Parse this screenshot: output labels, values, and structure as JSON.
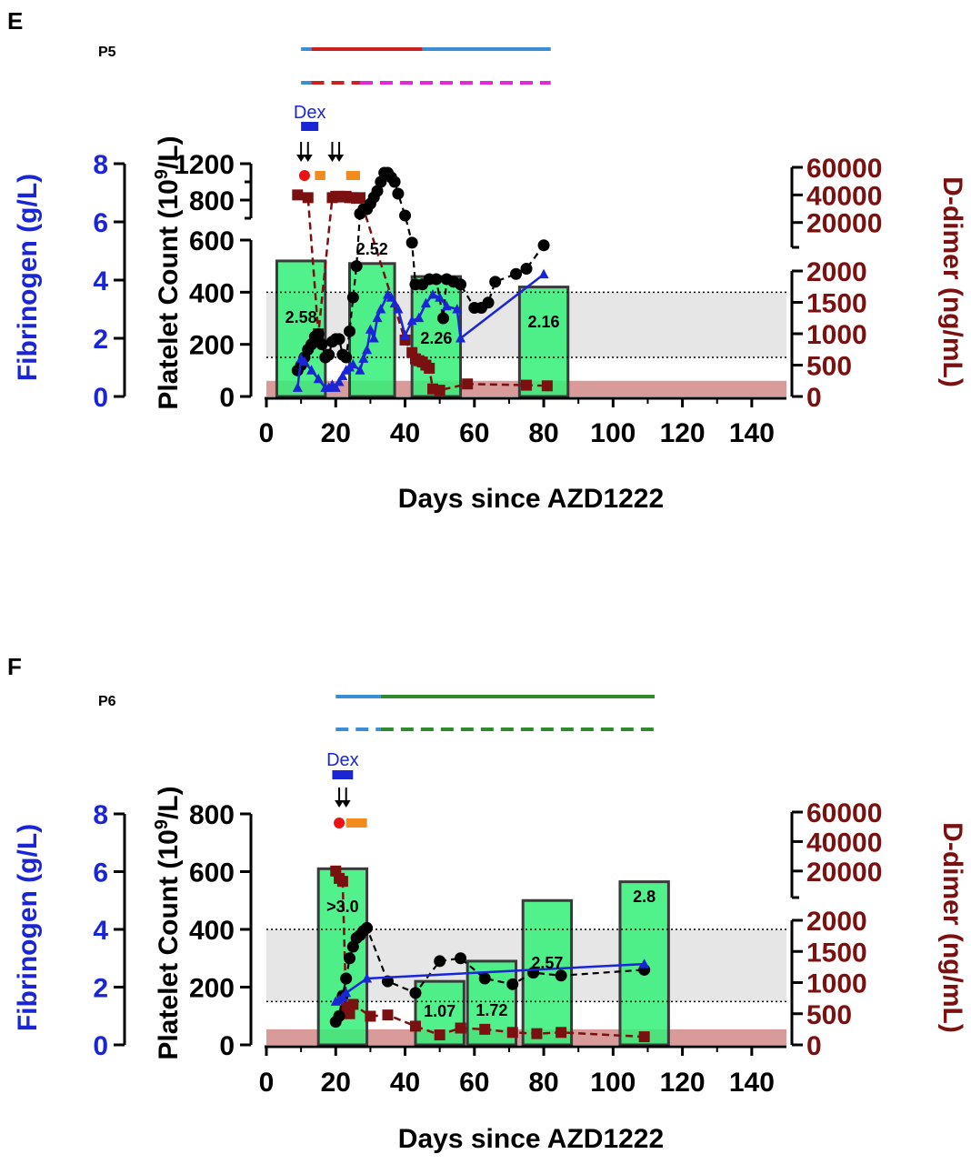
{
  "chart_data": [
    {
      "panel_letter": "E",
      "patient": "P5",
      "type": "line",
      "xlabel": "Days since AZD1222",
      "xlim": [
        0,
        150
      ],
      "x_ticks": [
        "0",
        "20",
        "40",
        "60",
        "80",
        "100",
        "120",
        "140"
      ],
      "left_axis": {
        "label": "Fibrinogen (g/L)",
        "ylim": [
          0,
          8
        ],
        "ticks": [
          "0",
          "2",
          "4",
          "6",
          "8"
        ]
      },
      "middle_axis": {
        "label_main": "Platelet Count (10",
        "label_sup": "9",
        "label_end": "/L)",
        "lower_ylim": [
          0,
          600
        ],
        "lower_ticks": [
          "0",
          "200",
          "400",
          "600"
        ],
        "upper_ylim": [
          600,
          1200
        ],
        "upper_ticks": [
          "800",
          "1200"
        ]
      },
      "right_axis": {
        "label": "D-dimer (ng/mL)",
        "lower_ylim": [
          0,
          2000
        ],
        "lower_ticks": [
          "0",
          "500",
          "1000",
          "1500",
          "2000"
        ],
        "upper_ylim": [
          2000,
          60000
        ],
        "upper_ticks": [
          "20000",
          "40000",
          "60000"
        ]
      },
      "reference_lines": {
        "platelet_low": 150,
        "platelet_high": 400,
        "ddimer_upper_normal": 250
      },
      "bars": [
        {
          "x_start": 3,
          "x_end": 17,
          "value": 2.58,
          "label": "2.58"
        },
        {
          "x_start": 24,
          "x_end": 37,
          "value": 2.52,
          "label": "2.52"
        },
        {
          "x_start": 42,
          "x_end": 56,
          "value": 2.26,
          "label": "2.26"
        },
        {
          "x_start": 73,
          "x_end": 87,
          "value": 2.16,
          "label": "2.16"
        }
      ],
      "bar_heights_platelet": [
        520,
        510,
        460,
        420
      ],
      "series": [
        {
          "name": "Platelet count",
          "color": "#000000",
          "x": [
            9,
            10,
            11,
            12,
            13,
            14,
            15,
            16,
            17,
            18,
            19,
            20,
            21,
            22,
            23,
            24,
            25,
            26,
            27,
            28,
            29,
            30,
            31,
            32,
            33,
            34,
            35,
            36,
            37,
            38,
            40,
            42,
            43,
            45,
            47,
            49,
            51,
            52,
            54,
            56,
            60,
            62,
            64,
            66,
            72,
            75,
            80
          ],
          "y": [
            100,
            120,
            150,
            180,
            200,
            230,
            240,
            200,
            150,
            160,
            210,
            220,
            220,
            160,
            150,
            250,
            380,
            500,
            650,
            700,
            700,
            760,
            830,
            900,
            1000,
            1100,
            1100,
            1050,
            1000,
            870,
            630,
            590,
            430,
            430,
            450,
            450,
            300,
            450,
            440,
            430,
            340,
            340,
            360,
            440,
            470,
            490,
            580
          ]
        },
        {
          "name": "Fibrinogen",
          "color": "#1a26d6",
          "x": [
            9,
            10,
            11,
            13,
            15,
            17,
            18,
            19,
            20,
            21,
            22,
            23,
            24,
            25,
            27,
            28,
            29,
            30,
            31,
            32,
            33,
            35,
            36,
            37,
            38,
            40,
            42,
            44,
            46,
            48,
            50,
            52,
            55,
            56,
            80
          ],
          "y": [
            0.3,
            1.3,
            1.2,
            0.9,
            0.6,
            0.3,
            0.3,
            0.4,
            0.3,
            0.5,
            0.7,
            0.9,
            1.0,
            1.1,
            0.9,
            1.3,
            1.6,
            2.3,
            2.0,
            2.7,
            3.0,
            3.5,
            3.4,
            3.2,
            3.0,
            2.1,
            2.6,
            2.7,
            3.2,
            3.5,
            3.4,
            3.1,
            3.0,
            2.0,
            4.2
          ]
        },
        {
          "name": "D-dimer",
          "color": "#7a1010",
          "x": [
            9,
            12,
            15,
            19,
            20,
            21,
            22,
            23,
            24,
            25,
            26,
            27,
            40,
            42,
            43,
            44,
            45,
            46,
            47,
            48,
            50,
            58,
            75,
            81
          ],
          "y": [
            40000,
            38000,
            1000,
            38000,
            39000,
            39000,
            38500,
            39000,
            38000,
            38000,
            37500,
            38000,
            900,
            700,
            600,
            570,
            550,
            500,
            450,
            120,
            100,
            200,
            180,
            170
          ]
        }
      ],
      "treatment_bars": [
        {
          "color": "#3a8ed6",
          "x_start": 10,
          "x_end": 13,
          "style": "solid",
          "row": 1
        },
        {
          "color": "#cc2020",
          "x_start": 13,
          "x_end": 45,
          "style": "solid",
          "row": 1
        },
        {
          "color": "#3a8ed6",
          "x_start": 45,
          "x_end": 82,
          "style": "solid",
          "row": 1
        },
        {
          "color": "#3a8ed6",
          "x_start": 10,
          "x_end": 13,
          "style": "solid",
          "row": 2
        },
        {
          "color": "#cc2020",
          "x_start": 13,
          "x_end": 27,
          "style": "dashed",
          "row": 2
        },
        {
          "color": "#e02ad8",
          "x_start": 27,
          "x_end": 82,
          "style": "dashed",
          "row": 2
        }
      ],
      "dex_label": "Dex",
      "dex_bar": {
        "x_start": 10,
        "x_end": 15
      },
      "arrow_days": [
        10,
        12,
        19,
        21
      ],
      "red_dot_day": 11,
      "orange_bars": [
        {
          "x_start": 14,
          "x_end": 17
        },
        {
          "x_start": 23,
          "x_end": 27
        }
      ]
    },
    {
      "panel_letter": "F",
      "patient": "P6",
      "type": "line",
      "xlabel": "Days since AZD1222",
      "xlim": [
        0,
        150
      ],
      "x_ticks": [
        "0",
        "20",
        "40",
        "60",
        "80",
        "100",
        "120",
        "140"
      ],
      "left_axis": {
        "label": "Fibrinogen (g/L)",
        "ylim": [
          0,
          8
        ],
        "ticks": [
          "0",
          "2",
          "4",
          "6",
          "8"
        ]
      },
      "middle_axis": {
        "label_main": "Platelet Count (10",
        "label_sup": "9",
        "label_end": "/L)",
        "ylim": [
          0,
          800
        ],
        "ticks": [
          "0",
          "200",
          "400",
          "600",
          "800"
        ]
      },
      "right_axis": {
        "label": "D-dimer (ng/mL)",
        "lower_ylim": [
          0,
          2000
        ],
        "lower_ticks": [
          "0",
          "500",
          "1000",
          "1500",
          "2000"
        ],
        "upper_ylim": [
          2000,
          60000
        ],
        "upper_ticks": [
          "20000",
          "40000",
          "60000"
        ]
      },
      "reference_lines": {
        "platelet_low": 150,
        "platelet_high": 400,
        "ddimer_upper_normal": 250
      },
      "bars": [
        {
          "x_start": 15,
          "x_end": 29,
          "value": 3.0,
          "label": ">3.0"
        },
        {
          "x_start": 43,
          "x_end": 57,
          "value": 1.07,
          "label": "1.07"
        },
        {
          "x_start": 58,
          "x_end": 72,
          "value": 1.72,
          "label": "1.72"
        },
        {
          "x_start": 74,
          "x_end": 88,
          "value": 2.57,
          "label": "2.57"
        },
        {
          "x_start": 102,
          "x_end": 116,
          "value": 2.8,
          "label": "2.8"
        }
      ],
      "bar_heights_platelet": [
        610,
        220,
        290,
        500,
        565
      ],
      "series": [
        {
          "name": "Platelet count",
          "color": "#000000",
          "x": [
            20,
            21,
            22,
            23,
            24,
            25,
            26,
            27,
            28,
            29,
            35,
            43,
            50,
            56,
            63,
            71,
            77,
            85,
            109
          ],
          "y": [
            80,
            100,
            170,
            230,
            300,
            340,
            370,
            380,
            395,
            405,
            220,
            180,
            290,
            300,
            230,
            210,
            250,
            240,
            260
          ]
        },
        {
          "name": "Fibrinogen",
          "color": "#1a26d6",
          "x": [
            20,
            21,
            22,
            23,
            29,
            109
          ],
          "y": [
            1.5,
            1.55,
            1.65,
            1.8,
            2.3,
            2.8
          ]
        },
        {
          "name": "D-dimer",
          "color": "#7a1010",
          "x": [
            20,
            21,
            22,
            23,
            24,
            25,
            30,
            35,
            43,
            50,
            56,
            63,
            71,
            78,
            85,
            109
          ],
          "y": [
            20000,
            15000,
            13000,
            600,
            500,
            650,
            460,
            480,
            300,
            160,
            270,
            250,
            200,
            180,
            200,
            130
          ]
        }
      ],
      "treatment_bars": [
        {
          "color": "#3a8ed6",
          "x_start": 20,
          "x_end": 33,
          "style": "solid",
          "row": 1
        },
        {
          "color": "#2e8a2a",
          "x_start": 33,
          "x_end": 112,
          "style": "solid",
          "row": 1
        },
        {
          "color": "#3a8ed6",
          "x_start": 20,
          "x_end": 33,
          "style": "dashed",
          "row": 2
        },
        {
          "color": "#2e8a2a",
          "x_start": 33,
          "x_end": 112,
          "style": "dashed",
          "row": 2
        }
      ],
      "dex_label": "Dex",
      "dex_bar": {
        "x_start": 19,
        "x_end": 25
      },
      "arrow_days": [
        21,
        23
      ],
      "red_dot_day": 21,
      "orange_bars": [
        {
          "x_start": 23,
          "x_end": 29
        }
      ]
    }
  ]
}
